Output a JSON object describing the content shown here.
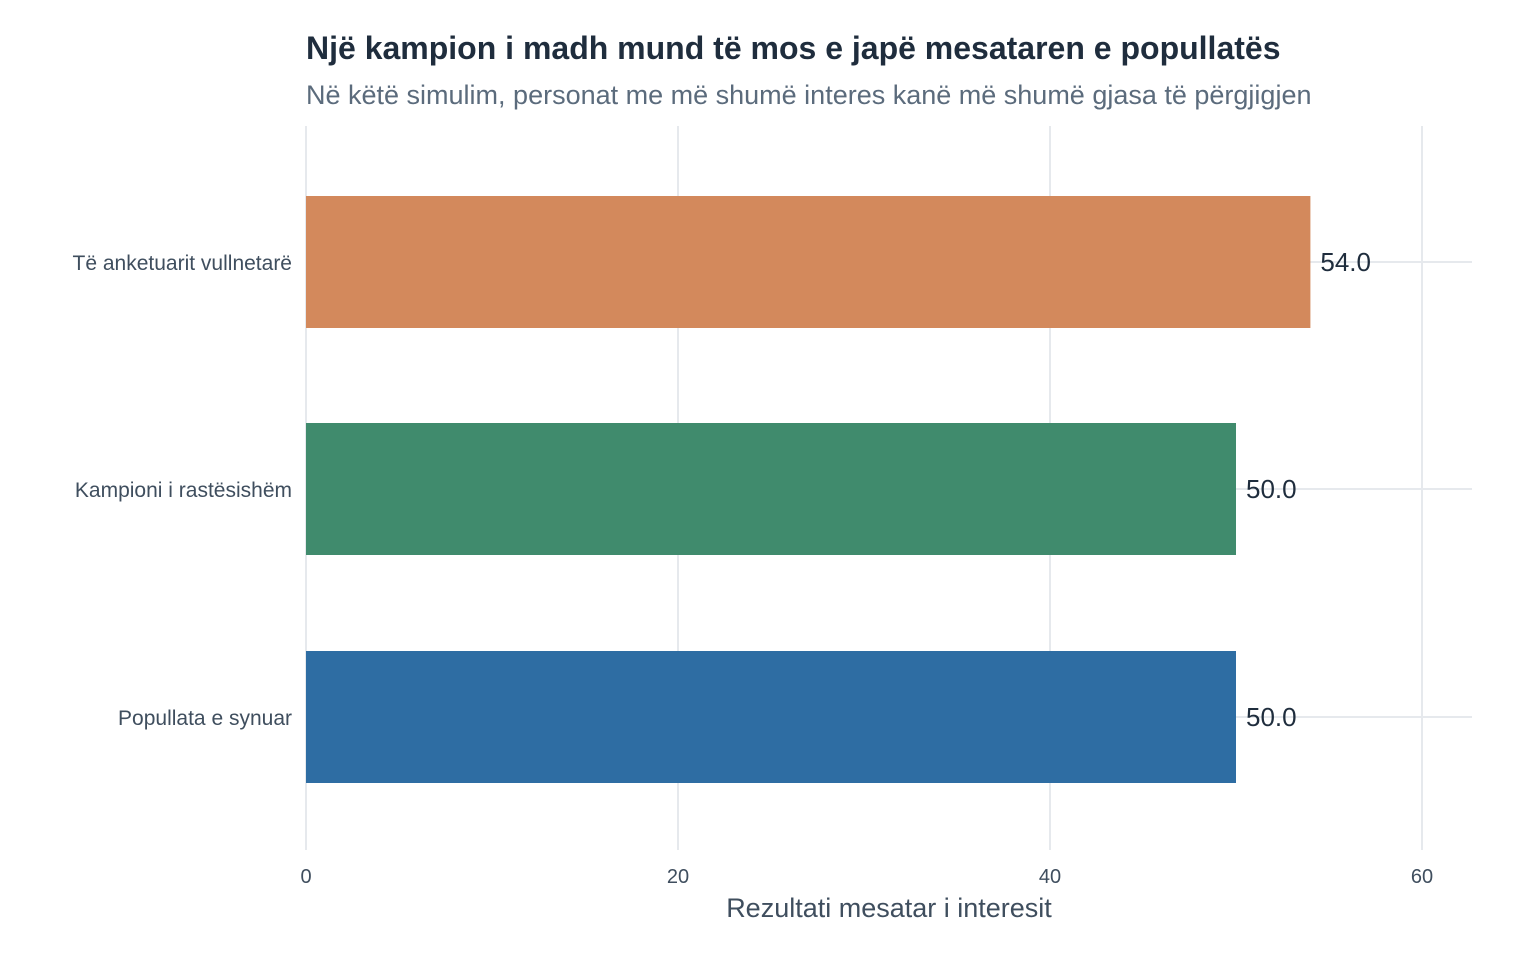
{
  "chart_data": {
    "type": "bar",
    "orientation": "horizontal",
    "title": "Një kampion i madh mund të mos e japë mesataren e popullatës",
    "subtitle": "Në këtë simulim, personat me më shumë interes kanë më shumë gjasa të përgjigjen",
    "xlabel": "Rezultati mesatar i interesit",
    "ylabel": "",
    "xlim": [
      0,
      62
    ],
    "xticks": [
      0,
      20,
      40,
      60
    ],
    "categories": [
      "Të anketuarit vullnetarë",
      "Kampioni i rastësishëm",
      "Popullata e synuar"
    ],
    "values": [
      54.0,
      50.0,
      50.0
    ],
    "value_labels": [
      "54.0",
      "50.0",
      "50.0"
    ],
    "colors": [
      "#d3895c",
      "#408b6d",
      "#2e6da3"
    ],
    "grid": true,
    "legend": "none"
  }
}
